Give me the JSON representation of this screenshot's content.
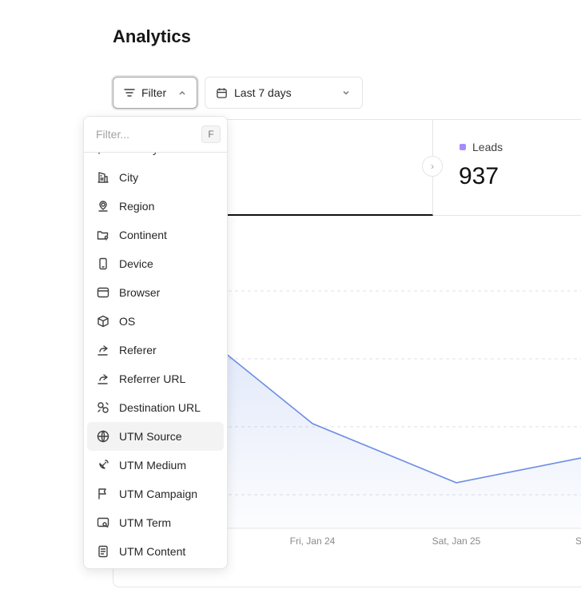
{
  "page": {
    "title": "Analytics"
  },
  "toolbar": {
    "filter_label": "Filter",
    "date_label": "Last 7 days"
  },
  "stats": {
    "leads": {
      "label": "Leads",
      "value": "937",
      "color": "#a78bfa"
    }
  },
  "chart": {
    "line_color": "#6b8de3",
    "x_labels": [
      "Fri, Jan 24",
      "Sat, Jan 25",
      "S"
    ]
  },
  "filter_menu": {
    "placeholder": "Filter...",
    "shortcut": "F",
    "items": [
      {
        "label": "Country",
        "icon": "flag-icon"
      },
      {
        "label": "City",
        "icon": "building-icon"
      },
      {
        "label": "Region",
        "icon": "map-pin-icon"
      },
      {
        "label": "Continent",
        "icon": "map-icon"
      },
      {
        "label": "Device",
        "icon": "mobile-icon"
      },
      {
        "label": "Browser",
        "icon": "browser-icon"
      },
      {
        "label": "OS",
        "icon": "cube-icon"
      },
      {
        "label": "Referer",
        "icon": "share-icon"
      },
      {
        "label": "Referrer URL",
        "icon": "share-icon"
      },
      {
        "label": "Destination URL",
        "icon": "link-icon"
      },
      {
        "label": "UTM Source",
        "icon": "globe-icon",
        "highlighted": true
      },
      {
        "label": "UTM Medium",
        "icon": "satellite-icon"
      },
      {
        "label": "UTM Campaign",
        "icon": "flag-icon"
      },
      {
        "label": "UTM Term",
        "icon": "search-icon"
      },
      {
        "label": "UTM Content",
        "icon": "document-icon"
      }
    ]
  }
}
